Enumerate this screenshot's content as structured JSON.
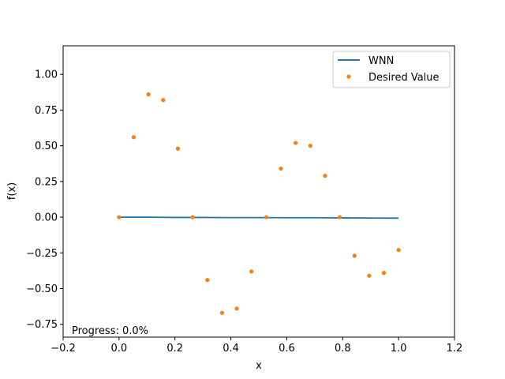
{
  "chart_data": {
    "type": "line",
    "title": "",
    "xlabel": "x",
    "ylabel": "f(x)",
    "xlim": [
      -0.2,
      1.2
    ],
    "ylim": [
      -0.84,
      1.2
    ],
    "xticks": [
      -0.2,
      0.0,
      0.2,
      0.4,
      0.6,
      0.8,
      1.0,
      1.2
    ],
    "xtick_labels": [
      "−0.2",
      "0.0",
      "0.2",
      "0.4",
      "0.6",
      "0.8",
      "1.0",
      "1.2"
    ],
    "yticks": [
      -0.75,
      -0.5,
      -0.25,
      0.0,
      0.25,
      0.5,
      0.75,
      1.0
    ],
    "ytick_labels": [
      "−0.75",
      "−0.50",
      "−0.25",
      "0.00",
      "0.25",
      "0.50",
      "0.75",
      "1.00"
    ],
    "grid": false,
    "legend_position": "upper-right",
    "series": [
      {
        "name": "WNN",
        "kind": "line",
        "color": "#1f77b4",
        "x": [
          0.0,
          0.1,
          0.2,
          0.3,
          0.4,
          0.5,
          0.6,
          0.7,
          0.8,
          0.9,
          1.0
        ],
        "y": [
          0.0,
          0.0,
          -0.002,
          -0.002,
          -0.003,
          -0.003,
          -0.004,
          -0.004,
          -0.005,
          -0.006,
          -0.007
        ]
      },
      {
        "name": "Desired Value",
        "kind": "scatter",
        "color": "#ff7f0e",
        "x": [
          0.0,
          0.0526,
          0.1053,
          0.1579,
          0.2105,
          0.2632,
          0.3158,
          0.3684,
          0.4211,
          0.4737,
          0.5263,
          0.5789,
          0.6316,
          0.6842,
          0.7368,
          0.7895,
          0.8421,
          0.8947,
          0.9474,
          1.0
        ],
        "y": [
          0.0,
          0.56,
          0.86,
          0.82,
          0.48,
          0.0,
          -0.44,
          -0.67,
          -0.64,
          -0.38,
          0.0,
          0.34,
          0.52,
          0.5,
          0.29,
          0.0,
          -0.27,
          -0.41,
          -0.39,
          -0.23
        ]
      }
    ],
    "annotations": [
      {
        "text": "Progress: 0.0%",
        "position": "bottom-left"
      }
    ]
  }
}
